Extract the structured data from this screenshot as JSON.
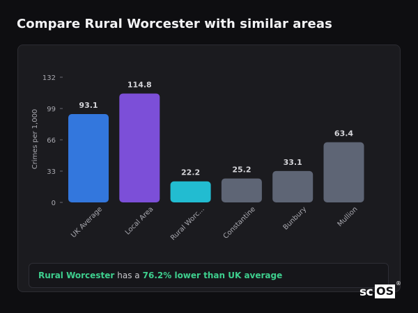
{
  "page": {
    "title": "Compare Rural Worcester with similar areas"
  },
  "colors": {
    "background": "#0e0e11",
    "card": "#1b1b1f",
    "uk_average": "#3377dd",
    "local_area": "#7c4fd8",
    "selected_area": "#22bcd1",
    "other_areas": "#5e6575",
    "highlight_green": "#3ecf8e"
  },
  "chart_data": {
    "type": "bar",
    "categories": [
      "UK Average",
      "Local Area",
      "Rural Worc...",
      "Constantine",
      "Bunbury",
      "Mullion"
    ],
    "values": [
      93.1,
      114.8,
      22.2,
      25.2,
      33.1,
      63.4
    ],
    "data_labels": [
      "93.1",
      "114.8",
      "22.2",
      "25.2",
      "33.1",
      "63.4"
    ],
    "bar_colors": [
      "#3377dd",
      "#7c4fd8",
      "#22bcd1",
      "#5e6575",
      "#5e6575",
      "#5e6575"
    ],
    "ylabel": "Crimes per 1,000",
    "yticks": [
      0,
      33,
      66,
      99,
      132
    ],
    "ylim": [
      0,
      132
    ],
    "grid": false,
    "tick_label_rotation": -45
  },
  "summary": {
    "area_name": "Rural Worcester",
    "middle_text": "has a",
    "comparison": "76.2% lower than UK average"
  },
  "brand": {
    "logo_text_1": "sc",
    "logo_text_2": "OS",
    "registered_mark": "®"
  }
}
